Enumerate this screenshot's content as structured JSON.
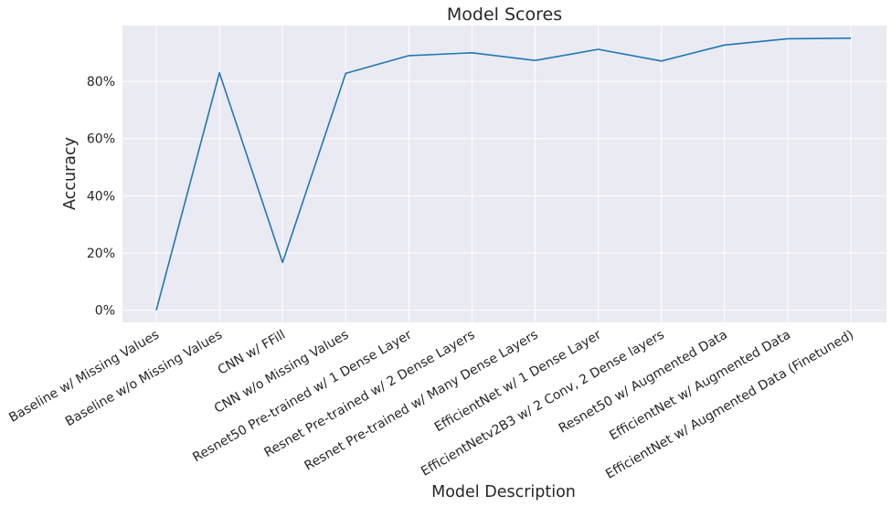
{
  "chart_data": {
    "type": "line",
    "title": "Model Scores",
    "xlabel": "Model Description",
    "ylabel": "Accuracy",
    "categories": [
      "Baseline w/ Missing Values",
      "Baseline w/o Missing Values",
      "CNN w/ FFill",
      "CNN w/o Missing Values",
      "Resnet50 Pre-trained w/ 1 Dense Layer",
      "Resnet Pre-trained w/ 2 Dense Layers",
      "Resnet Pre-trained w/ Many Dense Layers",
      "EfficientNet w/ 1 Dense Layer",
      "EfficientNetv2B3 w/ 2 Conv, 2 Dense layers",
      "Resnet50 w/ Augmented Data",
      "EfficientNet w/ Augmented Data",
      "EfficientNet w/ Augmented Data (Finetuned)"
    ],
    "values": [
      0.0,
      0.83,
      0.167,
      0.828,
      0.89,
      0.9,
      0.873,
      0.912,
      0.871,
      0.927,
      0.949,
      0.951
    ],
    "yticks": [
      0,
      0.2,
      0.4,
      0.6,
      0.8
    ],
    "ytick_labels": [
      "0%",
      "20%",
      "40%",
      "60%",
      "80%"
    ],
    "ylim": [
      -0.0425,
      0.995
    ],
    "grid": true,
    "colors": {
      "line": "#1f77b4",
      "background": "#eaeaf2",
      "grid": "#ffffff"
    }
  }
}
